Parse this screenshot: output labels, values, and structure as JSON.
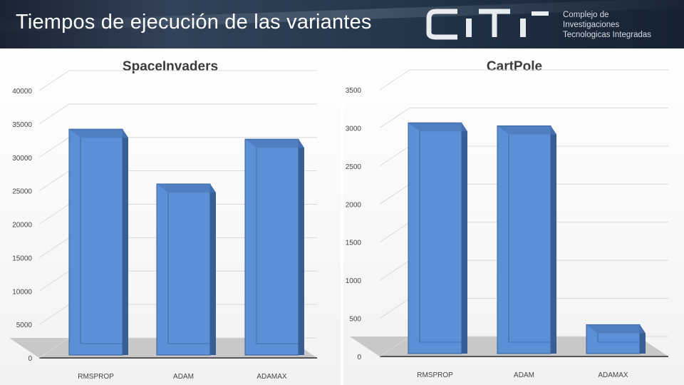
{
  "slide": {
    "title": "Tiempos de ejecución de las variantes",
    "logo_text": [
      "Complejo de",
      "Investigaciones",
      "Tecnologicas Integradas"
    ]
  },
  "colors": {
    "bar_front": "#5b8fd6",
    "bar_side": "#375f96",
    "bar_top": "#4a78b8",
    "floor": "#c8c8c8",
    "header": "#27384d"
  },
  "chart_data": [
    {
      "type": "bar",
      "title": "SpaceInvaders",
      "categories": [
        "RMSPROP",
        "ADAM",
        "ADAMAX"
      ],
      "values": [
        33800,
        25600,
        32300
      ],
      "ylim": [
        0,
        40000
      ],
      "yticks": [
        0,
        5000,
        10000,
        15000,
        20000,
        25000,
        30000,
        35000,
        40000
      ],
      "xlabel": "",
      "ylabel": "",
      "grid": true,
      "legend": "none"
    },
    {
      "type": "bar",
      "title": "CartPole",
      "categories": [
        "RMSPROP",
        "ADAM",
        "ADAMAX"
      ],
      "values": [
        3030,
        2990,
        380
      ],
      "ylim": [
        0,
        3500
      ],
      "yticks": [
        0,
        500,
        1000,
        1500,
        2000,
        2500,
        3000,
        3500
      ],
      "xlabel": "",
      "ylabel": "",
      "grid": true,
      "legend": "none"
    }
  ]
}
